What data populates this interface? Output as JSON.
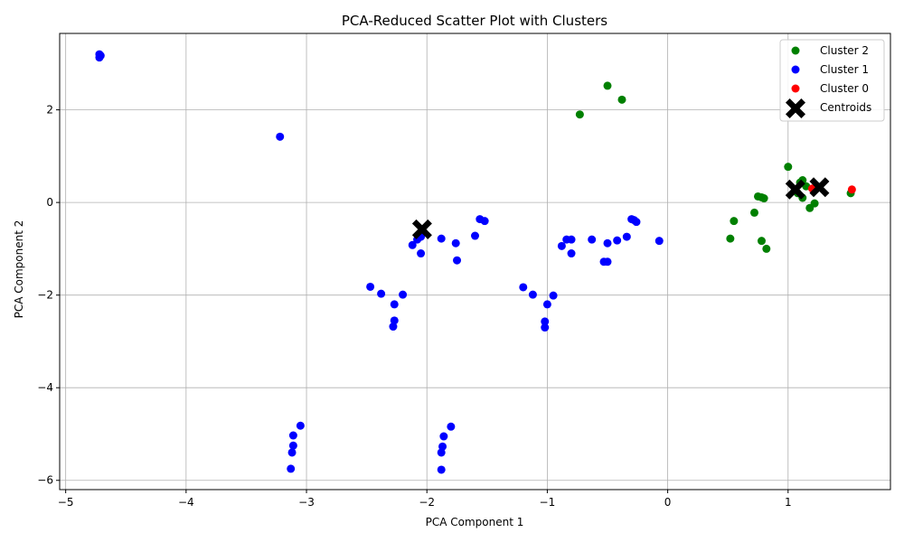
{
  "chart_data": {
    "type": "scatter",
    "title": "PCA-Reduced Scatter Plot with Clusters",
    "xlabel": "PCA Component 1",
    "ylabel": "PCA Component 2",
    "xlim": [
      -5.05,
      1.85
    ],
    "ylim": [
      -6.2,
      3.65
    ],
    "xticks": [
      -5,
      -4,
      -3,
      -2,
      -1,
      0,
      1
    ],
    "yticks": [
      -6,
      -4,
      -2,
      0,
      2
    ],
    "grid": true,
    "legend_position": "top-right",
    "series": [
      {
        "name": "Cluster 2",
        "color": "#008000",
        "marker": "circle",
        "points": [
          [
            -0.5,
            2.52
          ],
          [
            -0.38,
            2.22
          ],
          [
            -0.73,
            1.9
          ],
          [
            1.0,
            0.77
          ],
          [
            1.1,
            0.43
          ],
          [
            1.12,
            0.48
          ],
          [
            1.08,
            0.2
          ],
          [
            1.12,
            0.1
          ],
          [
            1.15,
            0.35
          ],
          [
            0.75,
            0.13
          ],
          [
            0.8,
            0.09
          ],
          [
            0.78,
            0.11
          ],
          [
            0.72,
            -0.22
          ],
          [
            0.55,
            -0.4
          ],
          [
            0.52,
            -0.78
          ],
          [
            0.78,
            -0.83
          ],
          [
            0.82,
            -1.0
          ],
          [
            1.18,
            -0.12
          ],
          [
            1.22,
            -0.02
          ],
          [
            1.52,
            0.2
          ]
        ]
      },
      {
        "name": "Cluster 1",
        "color": "#0000ff",
        "marker": "circle",
        "points": [
          [
            -4.72,
            3.2
          ],
          [
            -4.72,
            3.13
          ],
          [
            -4.71,
            3.17
          ],
          [
            -3.22,
            1.42
          ],
          [
            -2.12,
            -0.92
          ],
          [
            -2.08,
            -0.8
          ],
          [
            -2.05,
            -0.74
          ],
          [
            -2.05,
            -1.1
          ],
          [
            -1.88,
            -0.78
          ],
          [
            -1.76,
            -0.88
          ],
          [
            -1.75,
            -1.25
          ],
          [
            -1.6,
            -0.72
          ],
          [
            -1.56,
            -0.36
          ],
          [
            -1.52,
            -0.4
          ],
          [
            -2.47,
            -1.82
          ],
          [
            -2.38,
            -1.97
          ],
          [
            -2.27,
            -2.2
          ],
          [
            -2.27,
            -2.55
          ],
          [
            -2.28,
            -2.68
          ],
          [
            -2.2,
            -1.99
          ],
          [
            -1.2,
            -1.83
          ],
          [
            -1.12,
            -1.99
          ],
          [
            -1.0,
            -2.2
          ],
          [
            -1.02,
            -2.57
          ],
          [
            -1.02,
            -2.7
          ],
          [
            -0.95,
            -2.01
          ],
          [
            -0.88,
            -0.94
          ],
          [
            -0.84,
            -0.8
          ],
          [
            -0.8,
            -0.8
          ],
          [
            -0.8,
            -1.1
          ],
          [
            -0.63,
            -0.8
          ],
          [
            -0.53,
            -1.28
          ],
          [
            -0.5,
            -1.28
          ],
          [
            -0.5,
            -0.88
          ],
          [
            -0.42,
            -0.82
          ],
          [
            -0.34,
            -0.74
          ],
          [
            -0.3,
            -0.36
          ],
          [
            -0.28,
            -0.38
          ],
          [
            -0.26,
            -0.42
          ],
          [
            -0.07,
            -0.83
          ],
          [
            -3.05,
            -4.82
          ],
          [
            -3.11,
            -5.03
          ],
          [
            -3.11,
            -5.25
          ],
          [
            -3.12,
            -5.4
          ],
          [
            -3.13,
            -5.75
          ],
          [
            -1.8,
            -4.84
          ],
          [
            -1.86,
            -5.05
          ],
          [
            -1.87,
            -5.27
          ],
          [
            -1.88,
            -5.4
          ],
          [
            -1.88,
            -5.77
          ]
        ]
      },
      {
        "name": "Cluster 0",
        "color": "#ff0000",
        "marker": "circle",
        "points": [
          [
            1.2,
            0.3
          ],
          [
            1.53,
            0.28
          ]
        ]
      },
      {
        "name": "Centroids",
        "color": "#000000",
        "marker": "x",
        "points": [
          [
            -2.04,
            -0.58
          ],
          [
            1.06,
            0.28
          ],
          [
            1.26,
            0.33
          ]
        ]
      }
    ]
  }
}
